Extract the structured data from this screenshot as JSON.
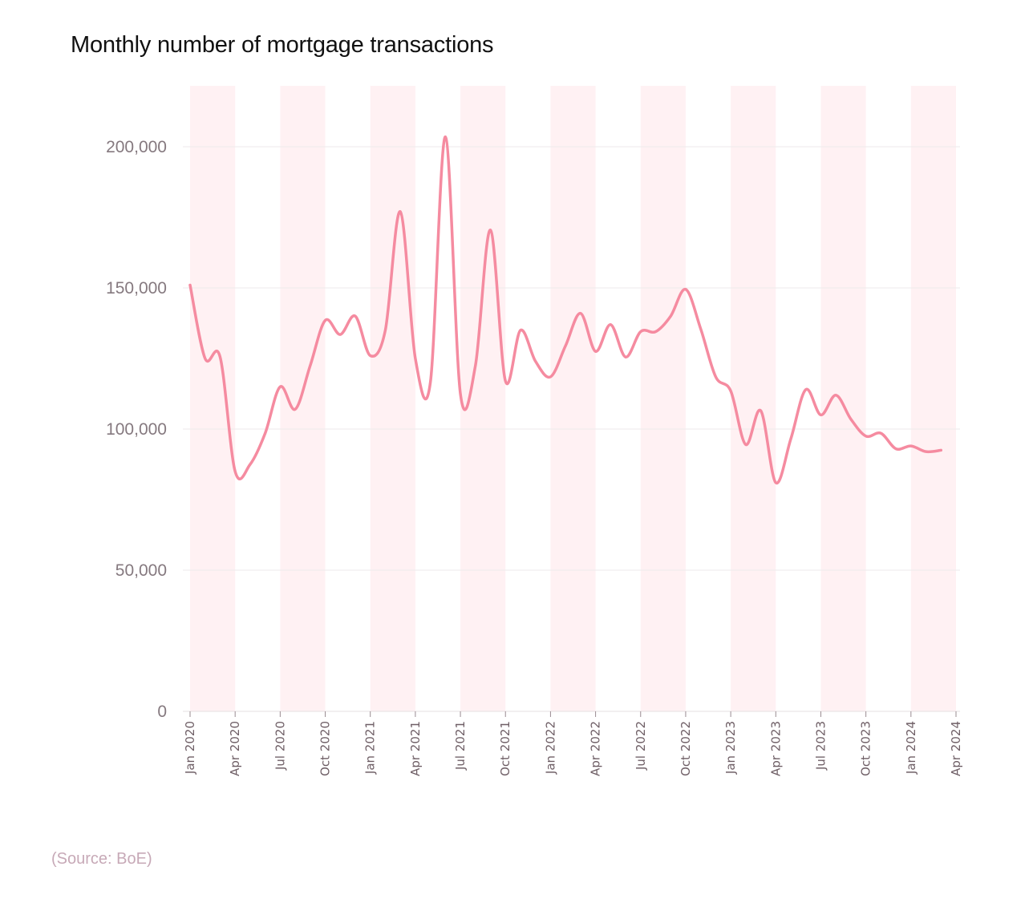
{
  "chart_data": {
    "type": "line",
    "title": "Monthly number of mortgage transactions",
    "source": "(Source: BoE)",
    "xlabel": "",
    "ylabel": "",
    "ylim": [
      0,
      220000
    ],
    "yticks": [
      0,
      50000,
      100000,
      150000,
      200000
    ],
    "ytick_labels": [
      "0",
      "50,000",
      "100,000",
      "150,000",
      "200,000"
    ],
    "xtick_labels": [
      "Jan 2020",
      "Apr 2020",
      "Jul 2020",
      "Oct 2020",
      "Jan 2021",
      "Apr 2021",
      "Jul 2021",
      "Oct 2021",
      "Jan 2022",
      "Apr 2022",
      "Jul 2022",
      "Oct 2022",
      "Jan 2023",
      "Apr 2023",
      "Jul 2023",
      "Oct 2023",
      "Jan 2024",
      "Apr 2024"
    ],
    "x": [
      "2020-01",
      "2020-02",
      "2020-03",
      "2020-04",
      "2020-05",
      "2020-06",
      "2020-07",
      "2020-08",
      "2020-09",
      "2020-10",
      "2020-11",
      "2020-12",
      "2021-01",
      "2021-02",
      "2021-03",
      "2021-04",
      "2021-05",
      "2021-06",
      "2021-07",
      "2021-08",
      "2021-09",
      "2021-10",
      "2021-11",
      "2021-12",
      "2022-01",
      "2022-02",
      "2022-03",
      "2022-04",
      "2022-05",
      "2022-06",
      "2022-07",
      "2022-08",
      "2022-09",
      "2022-10",
      "2022-11",
      "2022-12",
      "2023-01",
      "2023-02",
      "2023-03",
      "2023-04",
      "2023-05",
      "2023-06",
      "2023-07",
      "2023-08",
      "2023-09",
      "2023-10",
      "2023-11",
      "2023-12",
      "2024-01",
      "2024-02",
      "2024-03"
    ],
    "series": [
      {
        "values": [
          151000,
          125000,
          125500,
          85000,
          87500,
          98500,
          115000,
          107000,
          122500,
          138500,
          133500,
          140000,
          126000,
          135000,
          177000,
          125000,
          116500,
          203500,
          112500,
          122500,
          170500,
          117000,
          135000,
          124000,
          118500,
          129500,
          141000,
          127500,
          137000,
          125500,
          134500,
          134500,
          140000,
          149500,
          135500,
          118500,
          113500,
          94500,
          106500,
          81000,
          96500,
          114000,
          105000,
          112000,
          103500,
          97500,
          98500,
          93000,
          94000,
          92000,
          92500
        ],
        "color": "#f58ba0"
      }
    ],
    "grid": true,
    "band_color": "#fff1f3",
    "grid_color": "#eeeaeb"
  }
}
